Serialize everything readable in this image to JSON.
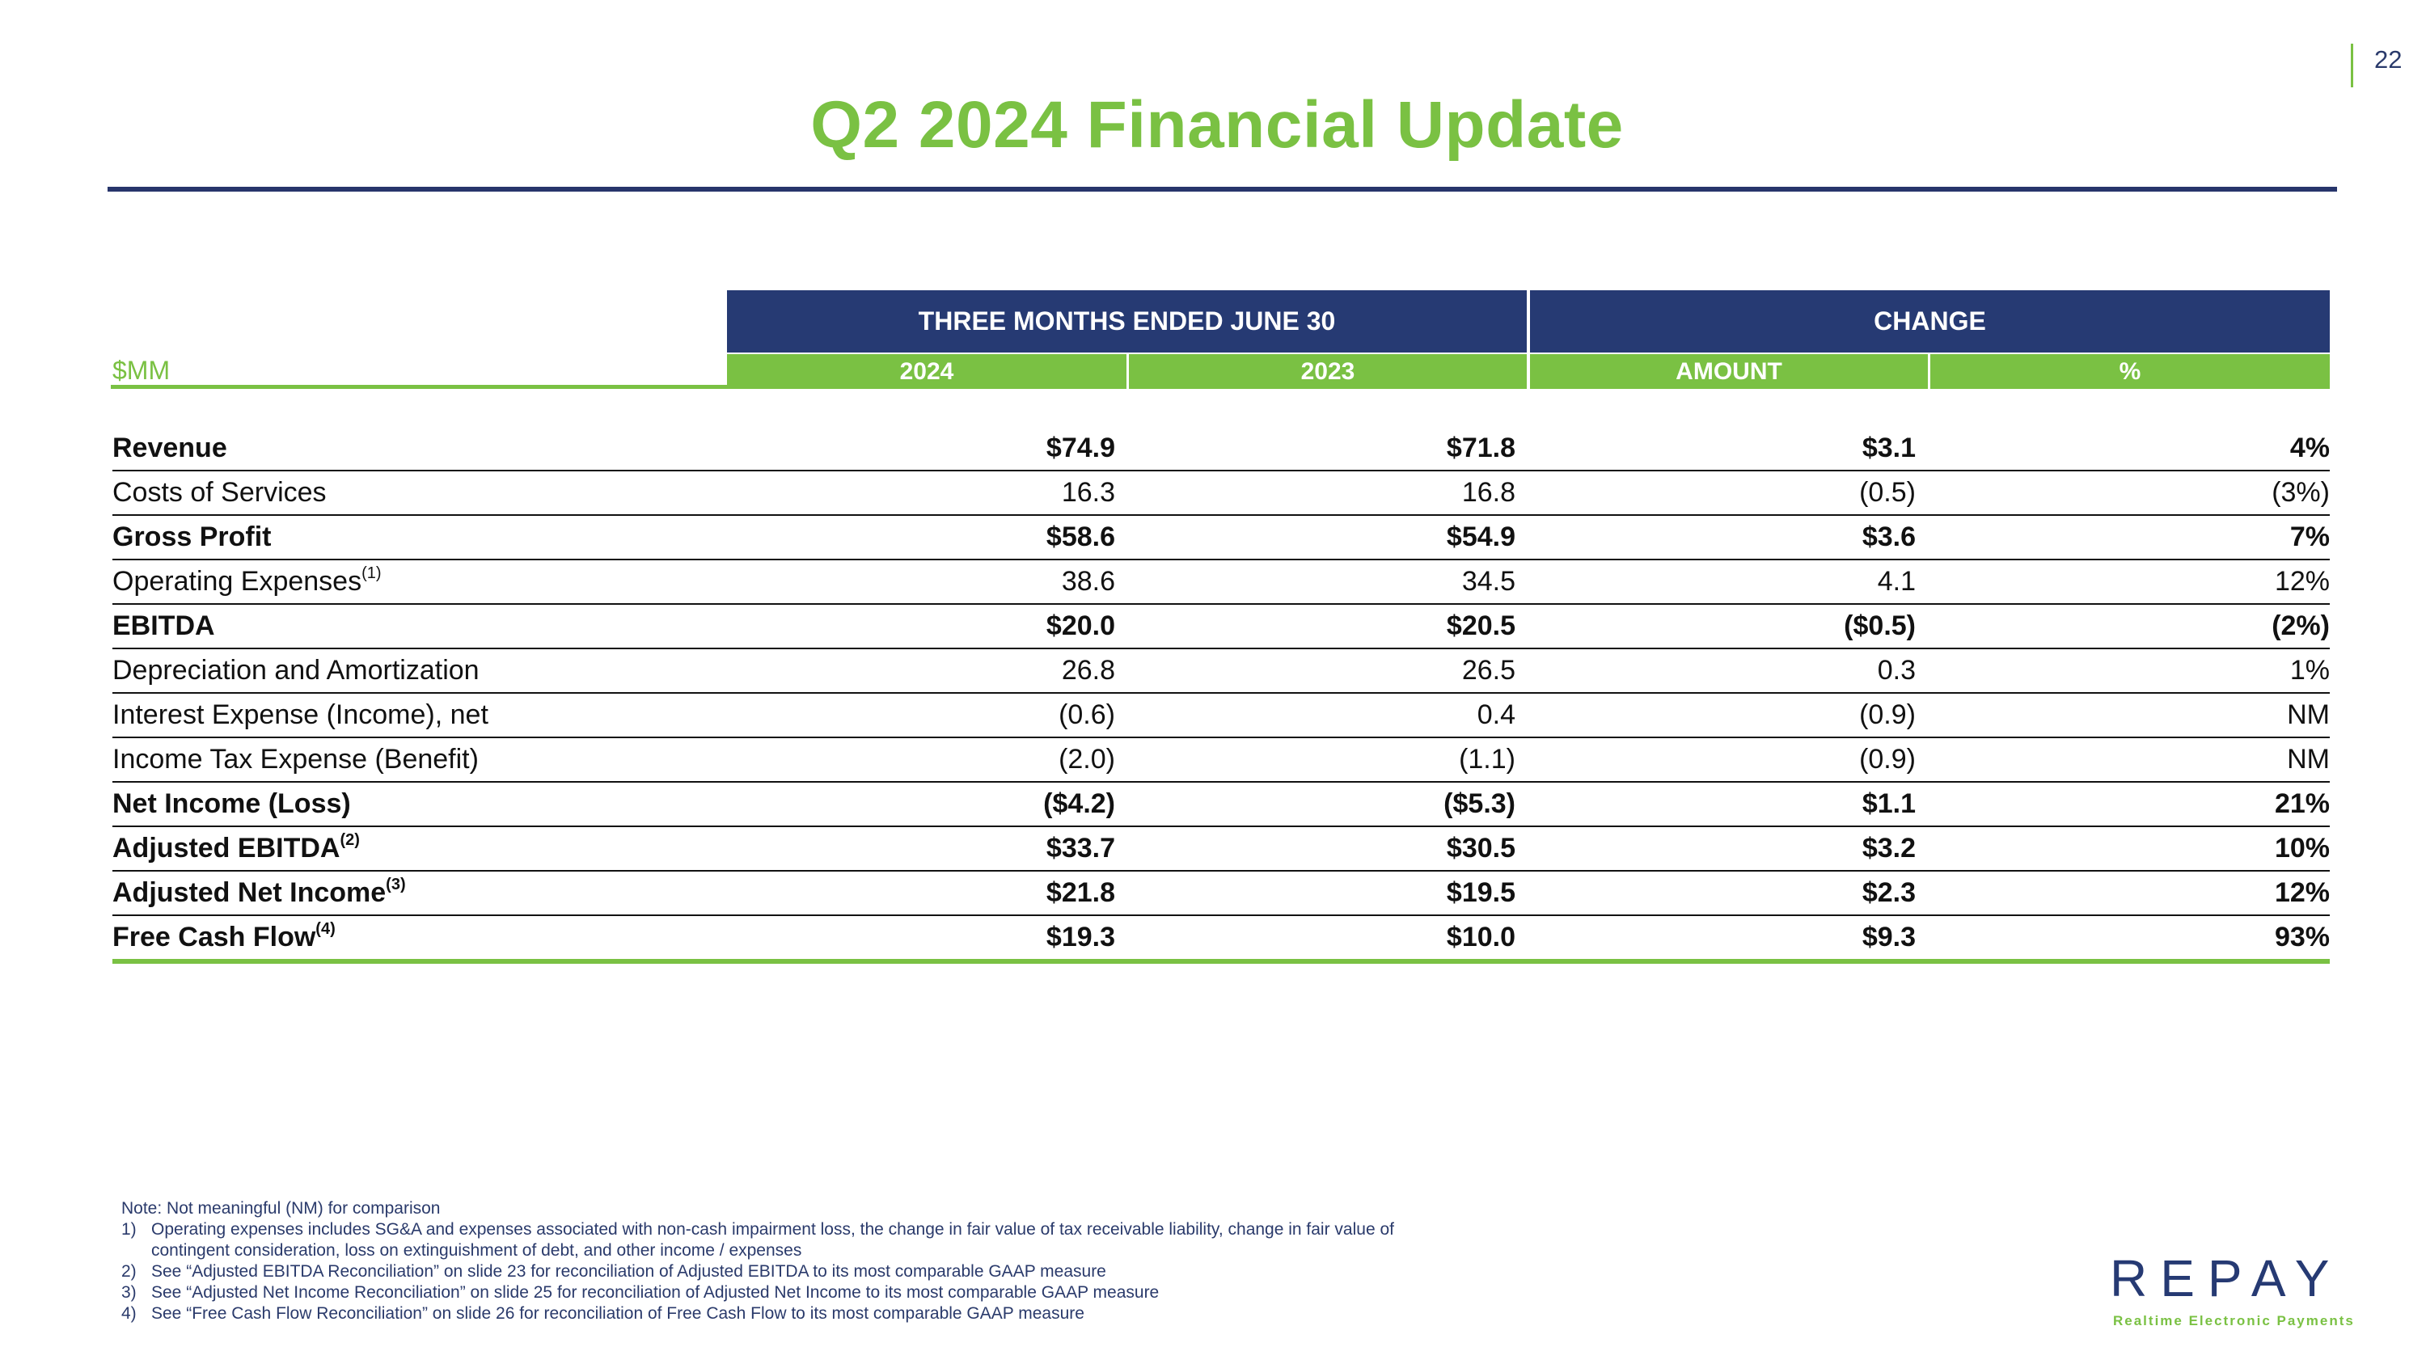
{
  "page": {
    "number": "22",
    "title": "Q2 2024 Financial Update"
  },
  "table": {
    "unit_label": "$MM",
    "group_headers": [
      "THREE MONTHS ENDED JUNE 30",
      "CHANGE"
    ],
    "column_headers": [
      "2024",
      "2023",
      "AMOUNT",
      "%"
    ],
    "rows": [
      {
        "label": "Revenue",
        "sup": "",
        "bold": true,
        "values": [
          "$74.9",
          "$71.8",
          "$3.1",
          "4%"
        ]
      },
      {
        "label": "Costs of Services",
        "sup": "",
        "bold": false,
        "values": [
          "16.3",
          "16.8",
          "(0.5)",
          "(3%)"
        ]
      },
      {
        "label": "Gross Profit",
        "sup": "",
        "bold": true,
        "values": [
          "$58.6",
          "$54.9",
          "$3.6",
          "7%"
        ]
      },
      {
        "label": "Operating Expenses",
        "sup": "(1)",
        "bold": false,
        "values": [
          "38.6",
          "34.5",
          "4.1",
          "12%"
        ]
      },
      {
        "label": "EBITDA",
        "sup": "",
        "bold": true,
        "values": [
          "$20.0",
          "$20.5",
          "($0.5)",
          "(2%)"
        ]
      },
      {
        "label": "Depreciation and Amortization",
        "sup": "",
        "bold": false,
        "values": [
          "26.8",
          "26.5",
          "0.3",
          "1%"
        ]
      },
      {
        "label": "Interest Expense (Income), net",
        "sup": "",
        "bold": false,
        "values": [
          "(0.6)",
          "0.4",
          "(0.9)",
          "NM"
        ]
      },
      {
        "label": "Income Tax Expense (Benefit)",
        "sup": "",
        "bold": false,
        "values": [
          "(2.0)",
          "(1.1)",
          "(0.9)",
          "NM"
        ]
      },
      {
        "label": "Net Income (Loss)",
        "sup": "",
        "bold": true,
        "values": [
          "($4.2)",
          "($5.3)",
          "$1.1",
          "21%"
        ]
      },
      {
        "label": "Adjusted EBITDA",
        "sup": "(2)",
        "bold": true,
        "values": [
          "$33.7",
          "$30.5",
          "$3.2",
          "10%"
        ]
      },
      {
        "label": "Adjusted Net Income",
        "sup": "(3)",
        "bold": true,
        "values": [
          "$21.8",
          "$19.5",
          "$2.3",
          "12%"
        ]
      },
      {
        "label": "Free Cash Flow",
        "sup": "(4)",
        "bold": true,
        "values": [
          "$19.3",
          "$10.0",
          "$9.3",
          "93%"
        ]
      }
    ]
  },
  "notes": {
    "intro": "Note: Not meaningful (NM) for comparison",
    "items": [
      {
        "num": "1)",
        "text": "Operating expenses includes SG&A and expenses associated with non-cash impairment loss, the change in fair value of tax receivable liability, change in fair value of",
        "cont": "contingent consideration, loss on extinguishment of debt, and other income / expenses"
      },
      {
        "num": "2)",
        "text": "See “Adjusted EBITDA Reconciliation” on slide 23 for reconciliation of Adjusted EBITDA to its most comparable GAAP measure"
      },
      {
        "num": "3)",
        "text": "See “Adjusted Net Income Reconciliation” on slide 25 for reconciliation of Adjusted Net Income to its most comparable GAAP measure"
      },
      {
        "num": "4)",
        "text": "See “Free Cash Flow Reconciliation” on slide 26 for reconciliation of Free Cash Flow to its most comparable GAAP measure"
      }
    ]
  },
  "logo": {
    "wordmark": "REPAY",
    "tagline": "Realtime Electronic Payments"
  },
  "colors": {
    "green": "#7ac143",
    "navy": "#263a73"
  }
}
